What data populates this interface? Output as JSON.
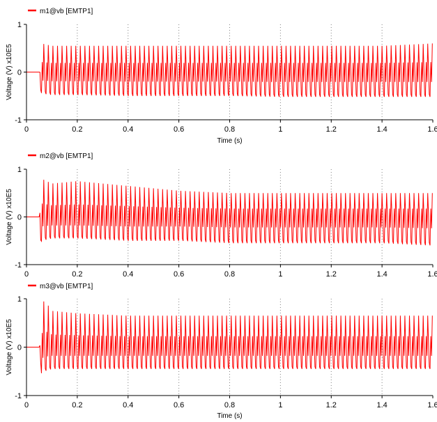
{
  "chart_data": [
    {
      "type": "line",
      "legend": "m1@vb [EMTP1]",
      "xlabel": "Time (s)",
      "ylabel": "Voltage (V) x10E5",
      "xlim": [
        0,
        1.6
      ],
      "ylim": [
        -1,
        1
      ],
      "xticks": [
        "0",
        "0.2",
        "0.4",
        "0.6",
        "0.8",
        "1",
        "1.2",
        "1.4",
        "1.6"
      ],
      "yticks": [
        "-1",
        "0",
        "1"
      ],
      "grid": "vertical dotted",
      "color": "#ff0000",
      "series": [
        {
          "name": "m1@vb [EMTP1]",
          "x": [
            0,
            0.05,
            0.051,
            0.055,
            0.06,
            0.1,
            0.2,
            0.4,
            0.6,
            0.8,
            1.0,
            1.2,
            1.4,
            1.6
          ],
          "y": [
            0,
            0,
            -0.78,
            0.75,
            0.6,
            0.55,
            0.55,
            0.55,
            0.55,
            0.55,
            0.55,
            0.55,
            0.55,
            0.6
          ],
          "envelope_min": [
            0,
            0,
            -0.78,
            -0.4,
            -0.45,
            -0.48,
            -0.48,
            -0.5,
            -0.5,
            -0.5,
            -0.52,
            -0.52,
            -0.52,
            -0.52
          ]
        }
      ]
    },
    {
      "type": "line",
      "legend": "m2@vb [EMTP1]",
      "xlabel": "",
      "ylabel": "Voltage (V) x10E5",
      "xlim": [
        0,
        1.6
      ],
      "ylim": [
        -1,
        1
      ],
      "xticks": [
        "0",
        "0.2",
        "0.4",
        "0.6",
        "0.8",
        "1",
        "1.2",
        "1.4",
        "1.6"
      ],
      "yticks": [
        "-1",
        "0",
        "1"
      ],
      "grid": "vertical dotted",
      "color": "#ff0000",
      "series": [
        {
          "name": "m2@vb [EMTP1]",
          "x": [
            0,
            0.05,
            0.055,
            0.06,
            0.1,
            0.2,
            0.4,
            0.6,
            0.8,
            1.0,
            1.2,
            1.4,
            1.6
          ],
          "y": [
            0,
            0,
            0.95,
            0.8,
            0.7,
            0.75,
            0.65,
            0.55,
            0.5,
            0.5,
            0.5,
            0.5,
            0.5
          ],
          "envelope_min": [
            0,
            0,
            -0.55,
            -0.5,
            -0.45,
            -0.45,
            -0.5,
            -0.5,
            -0.55,
            -0.55,
            -0.55,
            -0.55,
            -0.6
          ]
        }
      ]
    },
    {
      "type": "line",
      "legend": "m3@vb [EMTP1]",
      "xlabel": "Time (s)",
      "ylabel": "Voltage (V) x10E5",
      "xlim": [
        0,
        1.6
      ],
      "ylim": [
        -1,
        1
      ],
      "xticks": [
        "0",
        "0.2",
        "0.4",
        "0.6",
        "0.8",
        "1",
        "1.2",
        "1.4",
        "1.6"
      ],
      "yticks": [
        "-1",
        "0",
        "1"
      ],
      "grid": "vertical dotted",
      "color": "#ff0000",
      "series": [
        {
          "name": "m3@vb [EMTP1]",
          "x": [
            0,
            0.05,
            0.06,
            0.07,
            0.1,
            0.2,
            0.4,
            0.6,
            0.8,
            1.0,
            1.2,
            1.4,
            1.6
          ],
          "y": [
            0,
            0,
            0.8,
            0.98,
            0.75,
            0.7,
            0.65,
            0.65,
            0.65,
            0.65,
            0.65,
            0.65,
            0.65
          ],
          "envelope_min": [
            0,
            0,
            -0.6,
            -0.5,
            -0.45,
            -0.45,
            -0.45,
            -0.45,
            -0.45,
            -0.45,
            -0.45,
            -0.45,
            -0.45
          ]
        }
      ]
    }
  ]
}
